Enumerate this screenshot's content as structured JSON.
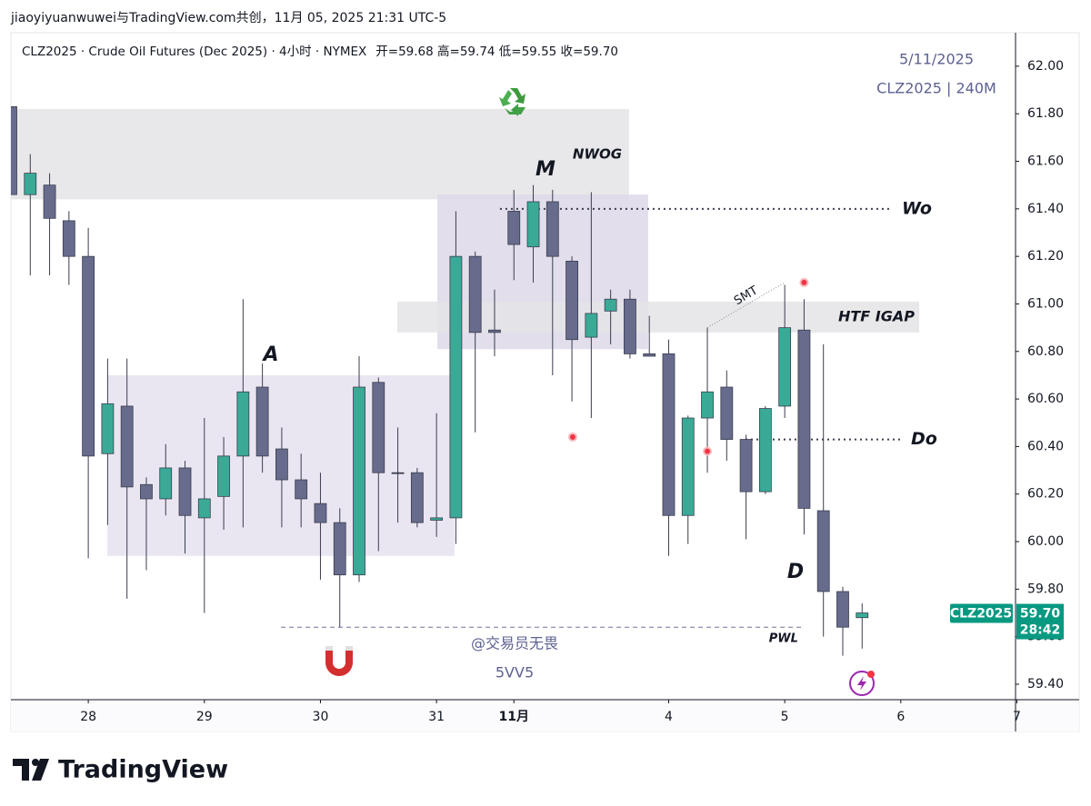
{
  "header": {
    "credit": "jiaoyiyuanwuwei与TradingView.com共创，11月 05, 2025 21:31 UTC-5"
  },
  "chart_data": {
    "type": "candlestick",
    "title": "CLZ2025 · Crude Oil Futures (Dec 2025) · 4小时 · NYMEX",
    "ohlc_legend": "开=59.68  高=59.74  低=59.55  收=59.70",
    "watermark": [
      "5/11/2025",
      "CLZ2025 | 240M"
    ],
    "open": [
      61.83,
      61.46,
      61.5,
      61.35,
      61.2,
      60.37,
      60.57,
      60.24,
      60.18,
      60.31,
      60.1,
      60.19,
      60.36,
      60.65,
      60.39,
      60.26,
      60.16,
      60.08,
      59.86,
      60.67,
      60.29,
      60.29,
      60.09,
      60.1,
      61.2,
      60.89,
      61.39,
      61.24,
      61.43,
      61.18,
      60.86,
      60.97,
      61.02,
      60.79,
      60.79,
      60.11,
      60.52,
      60.65,
      60.43,
      60.21,
      60.57,
      60.89,
      60.13,
      59.79,
      59.68
    ],
    "high": [
      61.83,
      61.63,
      61.55,
      61.39,
      61.32,
      60.77,
      60.77,
      60.27,
      60.41,
      60.34,
      60.52,
      60.44,
      61.02,
      60.75,
      60.48,
      60.37,
      60.29,
      60.14,
      60.78,
      60.69,
      60.48,
      60.31,
      60.54,
      61.39,
      61.22,
      61.06,
      61.48,
      61.5,
      61.48,
      61.2,
      61.47,
      61.06,
      61.06,
      60.95,
      60.85,
      60.53,
      60.9,
      60.72,
      60.45,
      60.57,
      61.08,
      61.02,
      60.83,
      59.81,
      59.74
    ],
    "low": [
      61.46,
      61.12,
      61.12,
      61.08,
      59.93,
      60.07,
      59.76,
      59.88,
      60.11,
      59.95,
      59.7,
      60.05,
      60.06,
      60.29,
      60.06,
      60.06,
      59.84,
      59.64,
      59.83,
      59.96,
      60.08,
      60.06,
      60.02,
      59.99,
      60.46,
      60.78,
      61.1,
      61.09,
      60.7,
      60.59,
      60.52,
      60.83,
      60.77,
      60.78,
      59.94,
      59.99,
      60.29,
      60.34,
      60.01,
      60.2,
      60.52,
      60.03,
      59.6,
      59.52,
      59.55
    ],
    "close": [
      61.46,
      61.55,
      61.36,
      61.2,
      60.36,
      60.58,
      60.23,
      60.18,
      60.31,
      60.11,
      60.18,
      60.36,
      60.63,
      60.36,
      60.26,
      60.18,
      60.08,
      59.86,
      60.65,
      60.29,
      60.29,
      60.08,
      60.1,
      61.2,
      60.88,
      60.88,
      61.25,
      61.43,
      61.2,
      60.85,
      60.96,
      61.02,
      60.79,
      60.78,
      60.11,
      60.52,
      60.63,
      60.43,
      60.21,
      60.56,
      60.9,
      60.14,
      59.79,
      59.64,
      59.7
    ],
    "up_color": "#3aaa97",
    "down_color": "#676b8c",
    "border_color": "#3b3d4f",
    "xlim": [
      0,
      51.93
    ],
    "xticks": [
      {
        "value": 4,
        "label": "28"
      },
      {
        "value": 10,
        "label": "29"
      },
      {
        "value": 16,
        "label": "30"
      },
      {
        "value": 22,
        "label": "31"
      },
      {
        "value": 26,
        "label": "11月"
      },
      {
        "value": 34,
        "label": "4"
      },
      {
        "value": 40,
        "label": "5"
      },
      {
        "value": 46,
        "label": "6"
      },
      {
        "value": 52,
        "label": "7"
      }
    ],
    "ylim": [
      59.335,
      62.141
    ],
    "yticks": [
      {
        "value": 59.4,
        "label": "59.40"
      },
      {
        "value": 59.6,
        "label": "59.60"
      },
      {
        "value": 59.8,
        "label": "59.80"
      },
      {
        "value": 60,
        "label": "60.00"
      },
      {
        "value": 60.2,
        "label": "60.20"
      },
      {
        "value": 60.4,
        "label": "60.40"
      },
      {
        "value": 60.6,
        "label": "60.60"
      },
      {
        "value": 60.8,
        "label": "60.80"
      },
      {
        "value": 61,
        "label": "61.00"
      },
      {
        "value": 61.2,
        "label": "61.20"
      },
      {
        "value": 61.4,
        "label": "61.40"
      },
      {
        "value": 61.6,
        "label": "61.60"
      },
      {
        "value": 61.8,
        "label": "61.80"
      },
      {
        "value": 62,
        "label": "62.00"
      }
    ],
    "zones": [
      {
        "x": [
          0,
          31.95
        ],
        "price": [
          61.44,
          61.82
        ],
        "color": "#e4e4e6"
      },
      {
        "x": [
          22.04,
          32.94
        ],
        "price": [
          60.81,
          61.46
        ],
        "color": "#ddd8e8"
      },
      {
        "x": [
          19.97,
          46.95
        ],
        "price": [
          60.88,
          61.01
        ],
        "color": "#e4e4e6"
      },
      {
        "x": [
          4.98,
          22.93
        ],
        "price": [
          59.94,
          60.7
        ],
        "color": "#e6e2ef"
      }
    ],
    "levels": [
      {
        "name": "Wo",
        "price": 61.4,
        "x": [
          25.28,
          45.49
        ],
        "style": "dotted"
      },
      {
        "name": "Do",
        "price": 60.43,
        "x": [
          37.97,
          45.96
        ],
        "style": "dotted"
      },
      {
        "name": "PWL",
        "price": 59.64,
        "x": [
          13.96,
          40.88
        ],
        "style": "dashed"
      }
    ],
    "smt": {
      "name": "SMT",
      "x": [
        36,
        40
      ],
      "price": [
        60.9,
        61.09
      ]
    },
    "dots": [
      {
        "x": 29.04,
        "price": 60.44
      },
      {
        "x": 36,
        "price": 60.38
      },
      {
        "x": 41,
        "price": 61.09
      }
    ],
    "annotations": [
      "A",
      "M",
      "D",
      "NWOG",
      "HTF IGAP"
    ],
    "watermark_author": "@交易员无畏",
    "watermark_id": "5VV5",
    "last_label": {
      "symbol": "CLZ2025",
      "price": {
        "value": 59.7,
        "label": "59.70"
      },
      "countdown": "28:42"
    }
  },
  "footer": {
    "brand": "TradingView"
  }
}
